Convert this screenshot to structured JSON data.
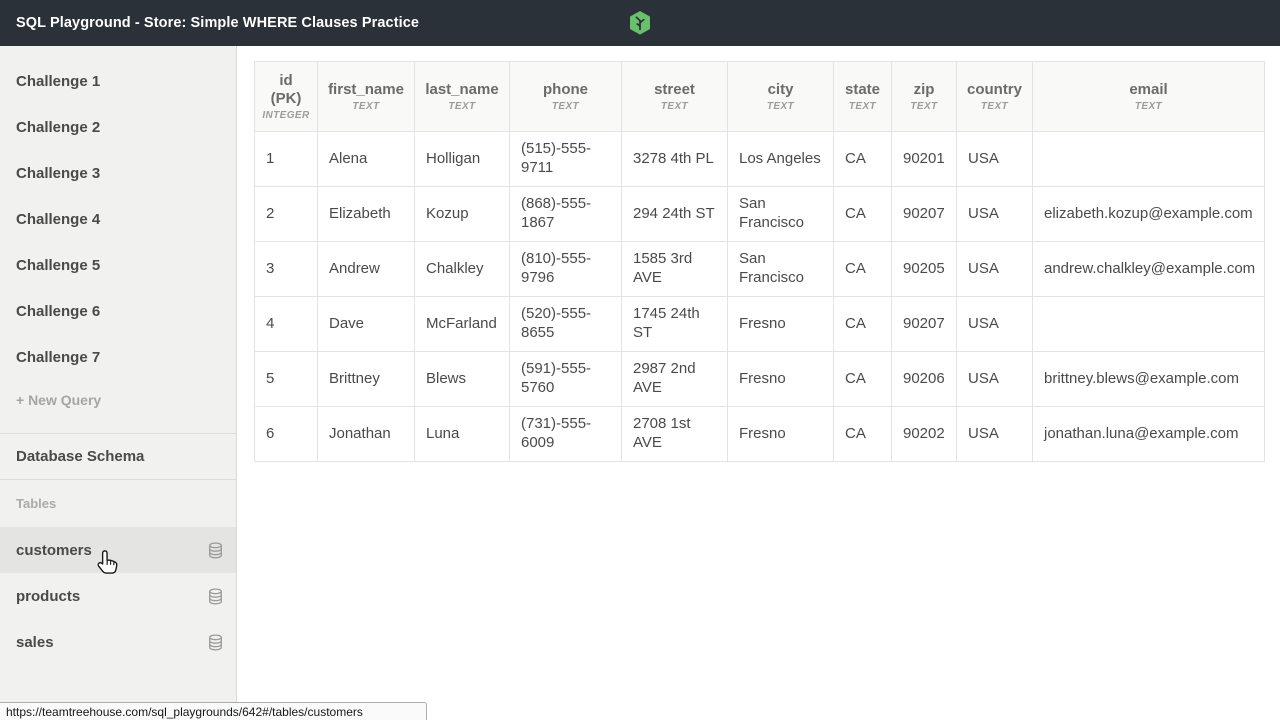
{
  "colors": {
    "topbar_bg": "#2b3138",
    "brand_green": "#68c06d",
    "sidebar_bg": "#f1f1ef",
    "sidebar_active_bg": "#e4e4e2",
    "table_border": "#e3e3e3",
    "text_dark": "#4a4a4a",
    "text_muted": "#a5a5a3",
    "header_text": "#6b6b6b"
  },
  "topbar": {
    "title": "SQL Playground - Store: Simple WHERE Clauses Practice",
    "logo_icon": "treehouse-badge-icon"
  },
  "sidebar": {
    "queries": [
      {
        "label": "Challenge 1"
      },
      {
        "label": "Challenge 2"
      },
      {
        "label": "Challenge 3"
      },
      {
        "label": "Challenge 4"
      },
      {
        "label": "Challenge 5"
      },
      {
        "label": "Challenge 6"
      },
      {
        "label": "Challenge 7"
      }
    ],
    "new_query_label": "+ New Query",
    "schema_heading": "Database Schema",
    "tables_heading": "Tables",
    "tables": [
      {
        "name": "customers",
        "icon": "database-icon",
        "active": true
      },
      {
        "name": "products",
        "icon": "database-icon",
        "active": false
      },
      {
        "name": "sales",
        "icon": "database-icon",
        "active": false
      }
    ]
  },
  "data_table": {
    "columns": [
      {
        "name": "id\n(PK)",
        "type": "INTEGER"
      },
      {
        "name": "first_name",
        "type": "TEXT"
      },
      {
        "name": "last_name",
        "type": "TEXT"
      },
      {
        "name": "phone",
        "type": "TEXT"
      },
      {
        "name": "street",
        "type": "TEXT"
      },
      {
        "name": "city",
        "type": "TEXT"
      },
      {
        "name": "state",
        "type": "TEXT"
      },
      {
        "name": "zip",
        "type": "TEXT"
      },
      {
        "name": "country",
        "type": "TEXT"
      },
      {
        "name": "email",
        "type": "TEXT"
      }
    ],
    "rows": [
      [
        "1",
        "Alena",
        "Holligan",
        "(515)-555-9711",
        "3278 4th PL",
        "Los Angeles",
        "CA",
        "90201",
        "USA",
        ""
      ],
      [
        "2",
        "Elizabeth",
        "Kozup",
        "(868)-555-1867",
        "294 24th ST",
        "San Francisco",
        "CA",
        "90207",
        "USA",
        "elizabeth.kozup@example.com"
      ],
      [
        "3",
        "Andrew",
        "Chalkley",
        "(810)-555-9796",
        "1585 3rd AVE",
        "San Francisco",
        "CA",
        "90205",
        "USA",
        "andrew.chalkley@example.com"
      ],
      [
        "4",
        "Dave",
        "McFarland",
        "(520)-555-8655",
        "1745 24th ST",
        "Fresno",
        "CA",
        "90207",
        "USA",
        ""
      ],
      [
        "5",
        "Brittney",
        "Blews",
        "(591)-555-5760",
        "2987 2nd AVE",
        "Fresno",
        "CA",
        "90206",
        "USA",
        "brittney.blews@example.com"
      ],
      [
        "6",
        "Jonathan",
        "Luna",
        "(731)-555-6009",
        "2708 1st AVE",
        "Fresno",
        "CA",
        "90202",
        "USA",
        "jonathan.luna@example.com"
      ]
    ]
  },
  "statusbar": {
    "url": "https://teamtreehouse.com/sql_playgrounds/642#/tables/customers"
  },
  "cursor": {
    "icon": "hand-pointer-cursor"
  }
}
